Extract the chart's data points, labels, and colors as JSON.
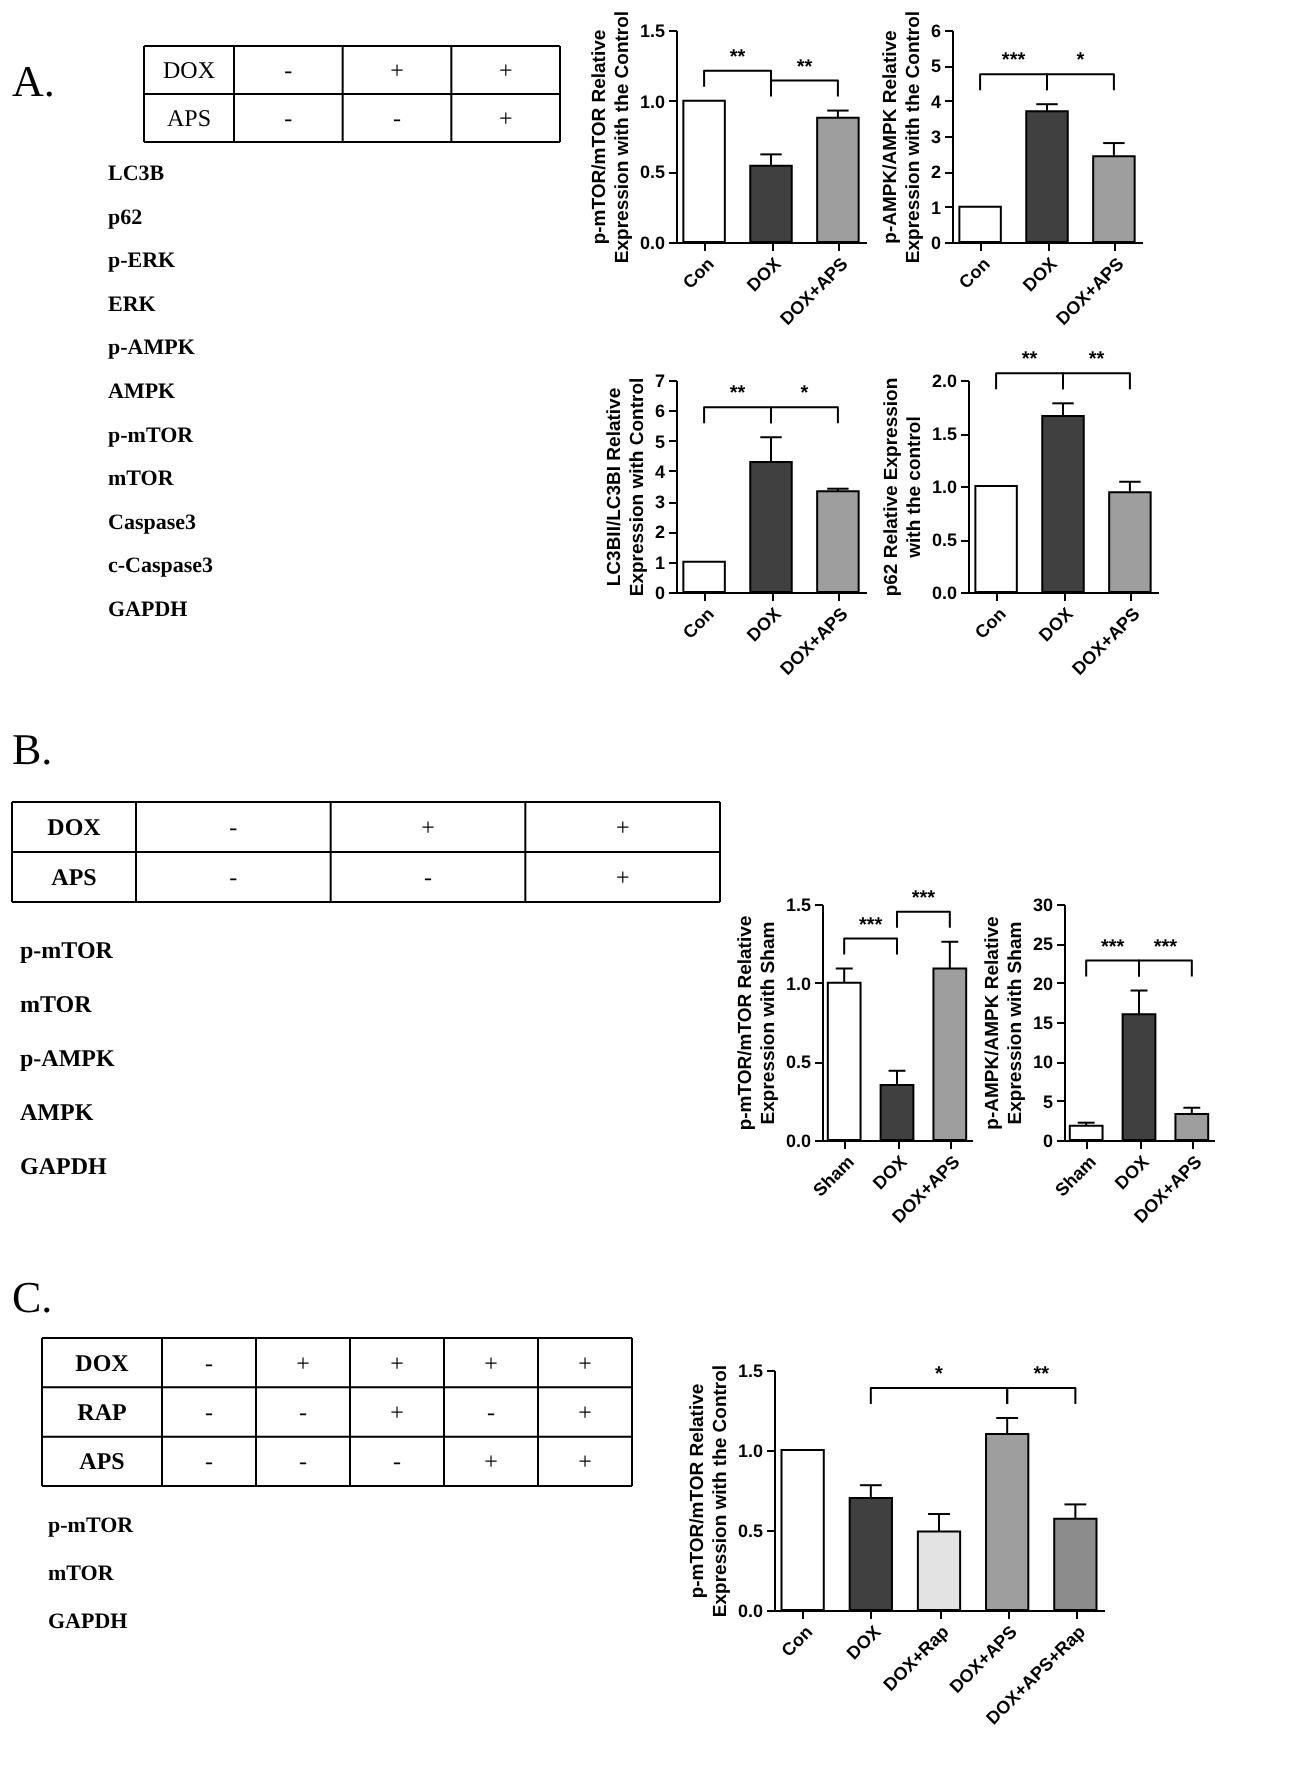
{
  "chart_data": [
    {
      "type": "other",
      "title": "A.",
      "y_categories": [
        "DOX",
        "APS"
      ],
      "cell_labels": [
        [
          "-",
          "+",
          "+"
        ],
        [
          "-",
          "-",
          "+"
        ]
      ],
      "annotations": [
        "LC3B",
        "p62",
        "p-ERK",
        "ERK",
        "p-AMPK",
        "AMPK",
        "p-mTOR",
        "mTOR",
        "Caspase3",
        "c-Caspase3",
        "GAPDH"
      ]
    },
    {
      "type": "bar",
      "ylabel": "p-mTOR/mTOR Relative\nExpression with the Control",
      "categories": [
        "Con",
        "DOX",
        "DOX+APS"
      ],
      "values": [
        1.0,
        0.54,
        0.88
      ],
      "errors": [
        null,
        0.08,
        0.05
      ],
      "colors": [
        "#ffffff",
        "#404040",
        "#9e9e9e"
      ],
      "ylim": [
        0,
        1.5
      ],
      "yticks": [
        {
          "value": 0,
          "label": "0.0"
        },
        0.5,
        {
          "value": 1,
          "label": "1.0"
        },
        1.5
      ],
      "annotations": [
        "**",
        "**"
      ]
    },
    {
      "type": "bar",
      "ylabel": "p-AMPK/AMPK Relative\nExpression with the Control",
      "categories": [
        "Con",
        "DOX",
        "DOX+APS"
      ],
      "values": [
        1.0,
        3.7,
        2.43
      ],
      "errors": [
        null,
        0.2,
        0.37
      ],
      "colors": [
        "#ffffff",
        "#404040",
        "#9e9e9e"
      ],
      "ylim": [
        0,
        6
      ],
      "yticks": [
        0,
        1,
        2,
        3,
        4,
        5,
        6
      ],
      "annotations": [
        "***",
        "*"
      ]
    },
    {
      "type": "bar",
      "ylabel": "LC3BII/LC3BI Relative\nExpression with Control",
      "categories": [
        "Con",
        "DOX",
        "DOX+APS"
      ],
      "values": [
        1.0,
        4.29,
        3.33
      ],
      "errors": [
        null,
        0.82,
        0.08
      ],
      "colors": [
        "#ffffff",
        "#404040",
        "#9e9e9e"
      ],
      "ylim": [
        0,
        7
      ],
      "yticks": [
        0,
        1,
        2,
        3,
        4,
        5,
        6,
        7
      ],
      "annotations": [
        "**",
        "*"
      ]
    },
    {
      "type": "bar",
      "ylabel": "p62 Relative Expression\nwith the control",
      "categories": [
        "Con",
        "DOX",
        "DOX+APS"
      ],
      "values": [
        1.0,
        1.66,
        0.94
      ],
      "errors": [
        null,
        0.12,
        0.1
      ],
      "colors": [
        "#ffffff",
        "#404040",
        "#9e9e9e"
      ],
      "ylim": [
        0,
        2
      ],
      "yticks": [
        {
          "value": 0,
          "label": "0.0"
        },
        0.5,
        {
          "value": 1,
          "label": "1.0"
        },
        1.5,
        {
          "value": 2,
          "label": "2.0"
        }
      ],
      "annotations": [
        "**",
        "**"
      ]
    },
    {
      "type": "other",
      "title": "B.",
      "y_categories": [
        "DOX",
        "APS"
      ],
      "cell_labels": [
        [
          "-",
          "+",
          "+"
        ],
        [
          "-",
          "-",
          "+"
        ]
      ],
      "annotations": [
        "p-mTOR",
        "mTOR",
        "p-AMPK",
        "AMPK",
        "GAPDH"
      ]
    },
    {
      "type": "bar",
      "ylabel": "p-mTOR/mTOR Relative\nExpression with Sham",
      "categories": [
        "Sham",
        "DOX",
        "DOX+APS"
      ],
      "values": [
        1.0,
        0.35,
        1.09
      ],
      "errors": [
        0.09,
        0.09,
        0.17
      ],
      "colors": [
        "#ffffff",
        "#404040",
        "#9e9e9e"
      ],
      "ylim": [
        0,
        1.5
      ],
      "yticks": [
        {
          "value": 0,
          "label": "0.0"
        },
        0.5,
        {
          "value": 1,
          "label": "1.0"
        },
        1.5
      ],
      "annotations": [
        "***",
        "***"
      ]
    },
    {
      "type": "bar",
      "ylabel": "p-AMPK/AMPK Relative\nExpression with Sham",
      "categories": [
        "Sham",
        "DOX",
        "DOX+APS"
      ],
      "values": [
        1.8,
        16,
        3.3
      ],
      "errors": [
        0.4,
        3,
        0.8
      ],
      "colors": [
        "#ffffff",
        "#404040",
        "#9e9e9e"
      ],
      "ylim": [
        0,
        30
      ],
      "yticks": [
        0,
        5,
        10,
        15,
        20,
        25,
        30
      ],
      "annotations": [
        "***",
        "***"
      ]
    },
    {
      "type": "other",
      "title": "C.",
      "y_categories": [
        "DOX",
        "RAP",
        "APS"
      ],
      "cell_labels": [
        [
          "-",
          "+",
          "+",
          "+",
          "+"
        ],
        [
          "-",
          "-",
          "+",
          "-",
          "+"
        ],
        [
          "-",
          "-",
          "-",
          "+",
          "+"
        ]
      ],
      "annotations": [
        "p-mTOR",
        "mTOR",
        "GAPDH"
      ]
    },
    {
      "type": "bar",
      "ylabel": "p-mTOR/mTOR Relative\nExpression with the Control",
      "categories": [
        "Con",
        "DOX",
        "DOX+Rap",
        "DOX+APS",
        "DOX+APS+Rap"
      ],
      "values": [
        1.0,
        0.7,
        0.49,
        1.1,
        0.57
      ],
      "errors": [
        null,
        0.08,
        0.11,
        0.1,
        0.09
      ],
      "colors": [
        "#ffffff",
        "#404040",
        "#e3e3e3",
        "#9e9e9e",
        "#8c8c8c"
      ],
      "ylim": [
        0,
        1.5
      ],
      "yticks": [
        {
          "value": 0,
          "label": "0.0"
        },
        0.5,
        {
          "value": 1,
          "label": "1.0"
        },
        1.5
      ],
      "annotations": [
        "*",
        "**"
      ]
    }
  ]
}
